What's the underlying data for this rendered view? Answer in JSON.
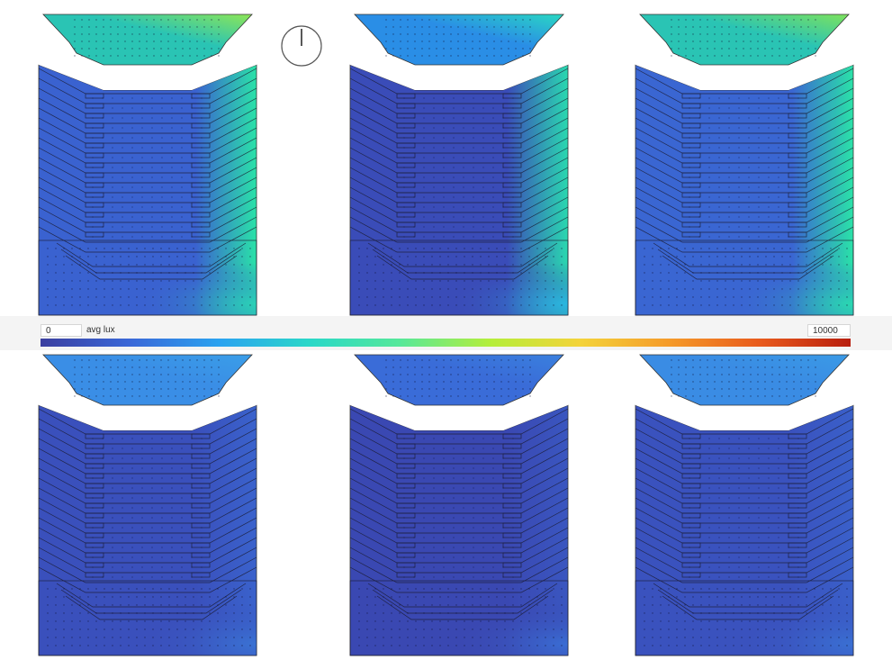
{
  "legend": {
    "min_value": "0",
    "max_value": "10000",
    "unit_label": "avg lux",
    "ramp_colors": [
      "#3b3fa0",
      "#3a68d8",
      "#2aa3f0",
      "#2ad8c8",
      "#56e89a",
      "#b5ee3a",
      "#f4d33a",
      "#f59a2a",
      "#e85a1c",
      "#b81e0e"
    ]
  },
  "compass": {
    "icon": "north-arrow-icon"
  },
  "panels": [
    {
      "name": "panel-top-left",
      "top_color": "#2ac4b4",
      "top_hot": "#8ee656",
      "body_base": "#3a62d0",
      "hot_edge": "#2ae2a8",
      "bottom_hot": "#2ad0b8",
      "intensity": 0.9
    },
    {
      "name": "panel-top-center",
      "top_color": "#2a8ee6",
      "top_hot": "#2ad8c2",
      "body_base": "#3a4cb8",
      "hot_edge": "#2ad8b0",
      "bottom_hot": "#2ab4e6",
      "intensity": 0.7
    },
    {
      "name": "panel-top-right",
      "top_color": "#2ac4b4",
      "top_hot": "#7ee25c",
      "body_base": "#3a66d2",
      "hot_edge": "#2ae2a8",
      "bottom_hot": "#2ad8b2",
      "intensity": 0.9
    },
    {
      "name": "panel-bottom-left",
      "top_color": "#3a8ee6",
      "top_hot": "#3a9ee8",
      "body_base": "#3a50bc",
      "hot_edge": "#3a62cc",
      "bottom_hot": "#3a74d4",
      "intensity": 0.3
    },
    {
      "name": "panel-bottom-center",
      "top_color": "#3a6cd8",
      "top_hot": "#3a80de",
      "body_base": "#3a48b2",
      "hot_edge": "#3a56c0",
      "bottom_hot": "#3a70d6",
      "intensity": 0.25
    },
    {
      "name": "panel-bottom-right",
      "top_color": "#3a8ce4",
      "top_hot": "#3a9ae6",
      "body_base": "#3a52be",
      "hot_edge": "#3a60ca",
      "bottom_hot": "#3a72d4",
      "intensity": 0.3
    }
  ]
}
